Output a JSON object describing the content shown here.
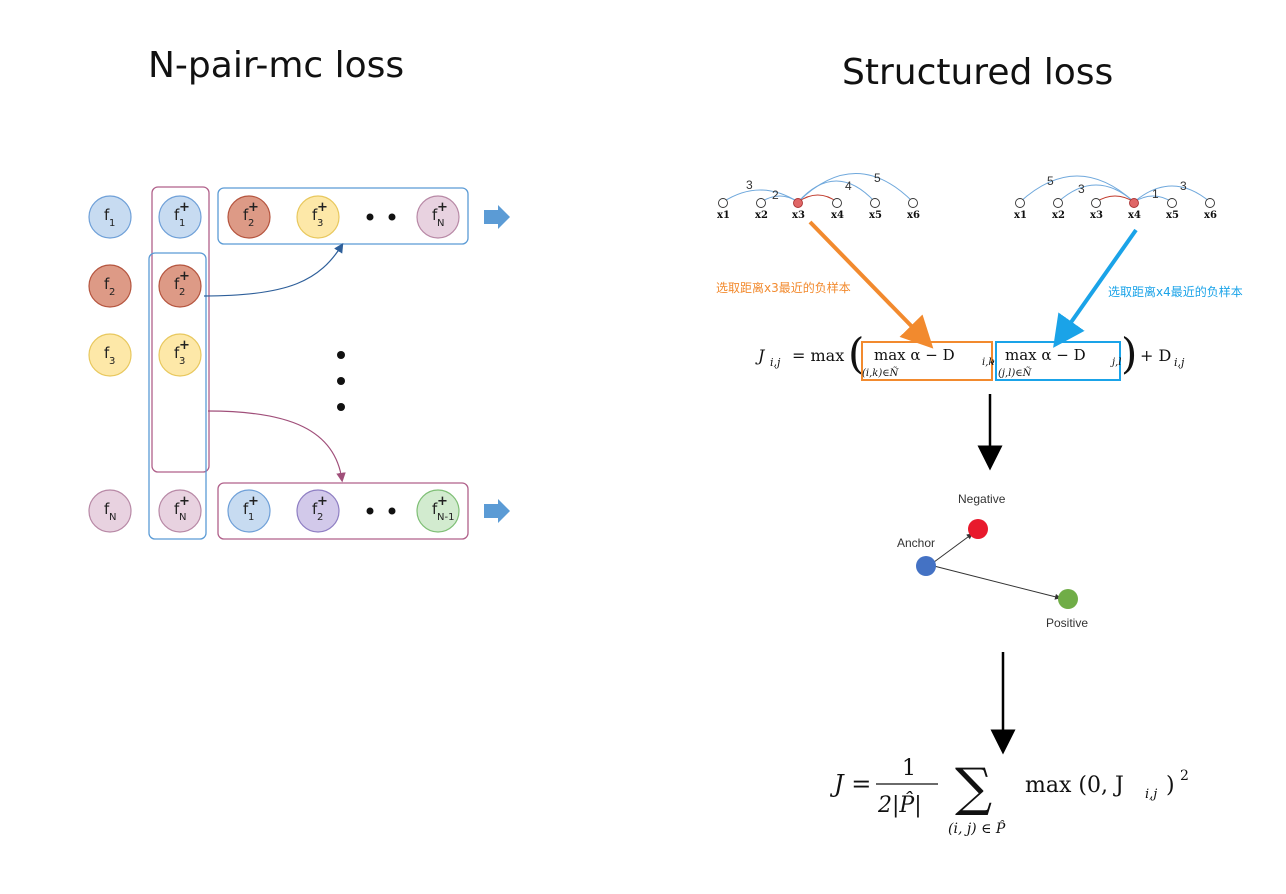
{
  "titles": {
    "left": "N-pair-mc loss",
    "right": "Structured loss"
  },
  "npair": {
    "col1": [
      {
        "base": "f",
        "sub": "1",
        "sup": ""
      },
      {
        "base": "f",
        "sub": "2",
        "sup": ""
      },
      {
        "base": "f",
        "sub": "3",
        "sup": ""
      },
      {
        "base": "f",
        "sub": "N",
        "sup": ""
      }
    ],
    "col2": [
      {
        "base": "f",
        "sub": "1",
        "sup": "+"
      },
      {
        "base": "f",
        "sub": "2",
        "sup": "+"
      },
      {
        "base": "f",
        "sub": "3",
        "sup": "+"
      },
      {
        "base": "f",
        "sub": "N",
        "sup": "+"
      }
    ],
    "row1": [
      {
        "base": "f",
        "sub": "2",
        "sup": "+"
      },
      {
        "base": "f",
        "sub": "3",
        "sup": "+"
      },
      {
        "base": "f",
        "sub": "N",
        "sup": "+"
      }
    ],
    "rowN": [
      {
        "base": "f",
        "sub": "1",
        "sup": "+"
      },
      {
        "base": "f",
        "sub": "2",
        "sup": "+"
      },
      {
        "base": "f",
        "sub": "N-1",
        "sup": "+"
      }
    ],
    "colors": {
      "blue": "#c7dbf1",
      "blue_stroke": "#6fa0d8",
      "red": "#dd9a86",
      "red_stroke": "#b5553f",
      "yellow": "#fde8a8",
      "yellow_stroke": "#e8c85e",
      "pink": "#e8d2e0",
      "pink_stroke": "#b889a6",
      "purple": "#d2c9ea",
      "purple_stroke": "#8f7fc3",
      "green": "#d2ebcf",
      "green_stroke": "#7fbf76",
      "box_blue": "#5b9bd5",
      "box_pink": "#b0608a",
      "arrow": "#5b9bd5"
    }
  },
  "structured": {
    "graph_left": {
      "nodes": [
        "x1",
        "x2",
        "x3",
        "x4",
        "x5",
        "x6"
      ],
      "edge_labels": [
        "3",
        "2",
        "4",
        "5"
      ]
    },
    "graph_right": {
      "nodes": [
        "x1",
        "x2",
        "x3",
        "x4",
        "x5",
        "x6"
      ],
      "edge_labels": [
        "5",
        "3",
        "1",
        "3"
      ]
    },
    "note_left": "选取距离x3最近的负样本",
    "note_right": "选取距离x4最近的负样本",
    "note_left_color": "#f28a2e",
    "note_right_color": "#1aa3e8",
    "eq1": {
      "lhs": "J",
      "lhs_sub": "i,j",
      "eq": "= max",
      "term1": "max α − D",
      "term1_sub": "i,k",
      "term1_under": "(i,k)∈Ñ",
      "term2": "max α − D",
      "term2_sub": "j,l",
      "term2_under": "(j,l)∈Ñ",
      "tail": "+ D",
      "tail_sub": "i,j"
    },
    "triplet": {
      "negative": "Negative",
      "anchor": "Anchor",
      "positive": "Positive",
      "negative_color": "#e8192c",
      "anchor_color": "#4472c4",
      "positive_color": "#70ad47"
    },
    "eq2": {
      "lhs": "J =",
      "num": "1",
      "den": "2|P̂|",
      "sum_under": "(i, j) ∈ P̂",
      "rhs": "max (0,  J",
      "rhs_sub": "i,j",
      "rhs_close": ")",
      "power": "2"
    }
  }
}
